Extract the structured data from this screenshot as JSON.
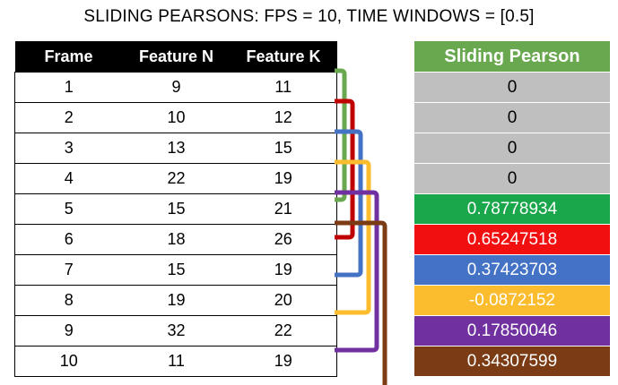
{
  "title": "SLIDING PEARSONS: FPS = 10, TIME WINDOWS = [0.5]",
  "table": {
    "headers": [
      "Frame",
      "Feature N",
      "Feature K"
    ],
    "rows": [
      [
        "1",
        "9",
        "11"
      ],
      [
        "2",
        "10",
        "12"
      ],
      [
        "3",
        "13",
        "15"
      ],
      [
        "4",
        "22",
        "19"
      ],
      [
        "5",
        "15",
        "21"
      ],
      [
        "6",
        "18",
        "26"
      ],
      [
        "7",
        "15",
        "19"
      ],
      [
        "8",
        "19",
        "20"
      ],
      [
        "9",
        "32",
        "22"
      ],
      [
        "10",
        "11",
        "19"
      ]
    ]
  },
  "pearson": {
    "header": "Sliding Pearson",
    "header_color": "#6aa84f",
    "values": [
      {
        "value": "0",
        "bg": "#bfbfbf",
        "fg": "#000000"
      },
      {
        "value": "0",
        "bg": "#bfbfbf",
        "fg": "#000000"
      },
      {
        "value": "0",
        "bg": "#bfbfbf",
        "fg": "#000000"
      },
      {
        "value": "0",
        "bg": "#bfbfbf",
        "fg": "#000000"
      },
      {
        "value": "0.78778934",
        "bg": "#1aa64a",
        "fg": "#ffffff"
      },
      {
        "value": "0.65247518",
        "bg": "#f20f0f",
        "fg": "#ffffff"
      },
      {
        "value": "0.37423703",
        "bg": "#4472c4",
        "fg": "#ffffff"
      },
      {
        "value": "-0.0872152",
        "bg": "#fbbc2e",
        "fg": "#ffffff"
      },
      {
        "value": "0.17850046",
        "bg": "#7030a0",
        "fg": "#ffffff"
      },
      {
        "value": "0.34307599",
        "bg": "#7b3b14",
        "fg": "#ffffff"
      }
    ]
  },
  "windows": [
    {
      "start": 1,
      "end": 5,
      "color": "#6aa84f"
    },
    {
      "start": 2,
      "end": 6,
      "color": "#c00000"
    },
    {
      "start": 3,
      "end": 7,
      "color": "#4472c4"
    },
    {
      "start": 4,
      "end": 8,
      "color": "#fbbc2e"
    },
    {
      "start": 5,
      "end": 9,
      "color": "#7030a0"
    },
    {
      "start": 6,
      "end": 10,
      "color": "#7b3b14"
    }
  ]
}
